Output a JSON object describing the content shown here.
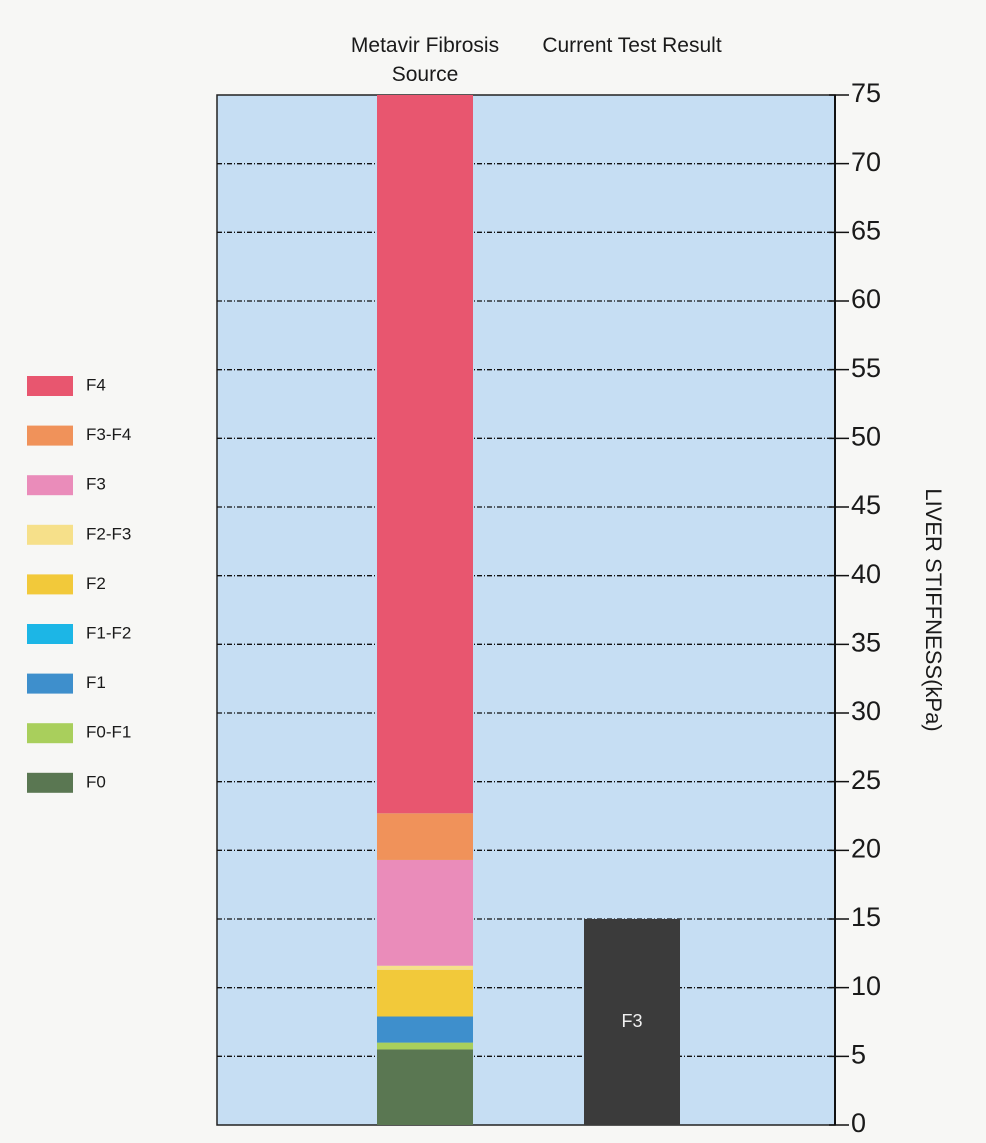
{
  "chart_data": {
    "type": "stacked-bar",
    "categories": [
      "Metavir Fibrosis Source",
      "Current Test Result"
    ],
    "series": [
      {
        "name": "F4",
        "color": "#e8566f",
        "values": [
          52.3,
          null
        ]
      },
      {
        "name": "F3-F4",
        "color": "#f0925a",
        "values": [
          3.4,
          null
        ]
      },
      {
        "name": "F3",
        "color": "#ea8cba",
        "values": [
          7.7,
          null
        ]
      },
      {
        "name": "F2-F3",
        "color": "#f6e08a",
        "values": [
          0.3,
          null
        ]
      },
      {
        "name": "F2",
        "color": "#f2c93a",
        "values": [
          3.4,
          null
        ]
      },
      {
        "name": "F1-F2",
        "color": "#1cb6e6",
        "values": [
          0,
          null
        ]
      },
      {
        "name": "F1",
        "color": "#3e8fcc",
        "values": [
          1.9,
          null
        ]
      },
      {
        "name": "F0-F1",
        "color": "#a9cf5c",
        "values": [
          0.5,
          null
        ]
      },
      {
        "name": "F0",
        "color": "#5a7752",
        "values": [
          5.5,
          null
        ]
      }
    ],
    "result": {
      "value": 15,
      "stage": "F3",
      "color": "#3b3b3b"
    },
    "ylabel": "LIVER STIFFNESS(kPa)",
    "ylim": [
      0,
      75
    ],
    "yticks": [
      0,
      5,
      10,
      15,
      20,
      25,
      30,
      35,
      40,
      45,
      50,
      55,
      60,
      65,
      70,
      75
    ],
    "grid": true,
    "legend": "left"
  }
}
